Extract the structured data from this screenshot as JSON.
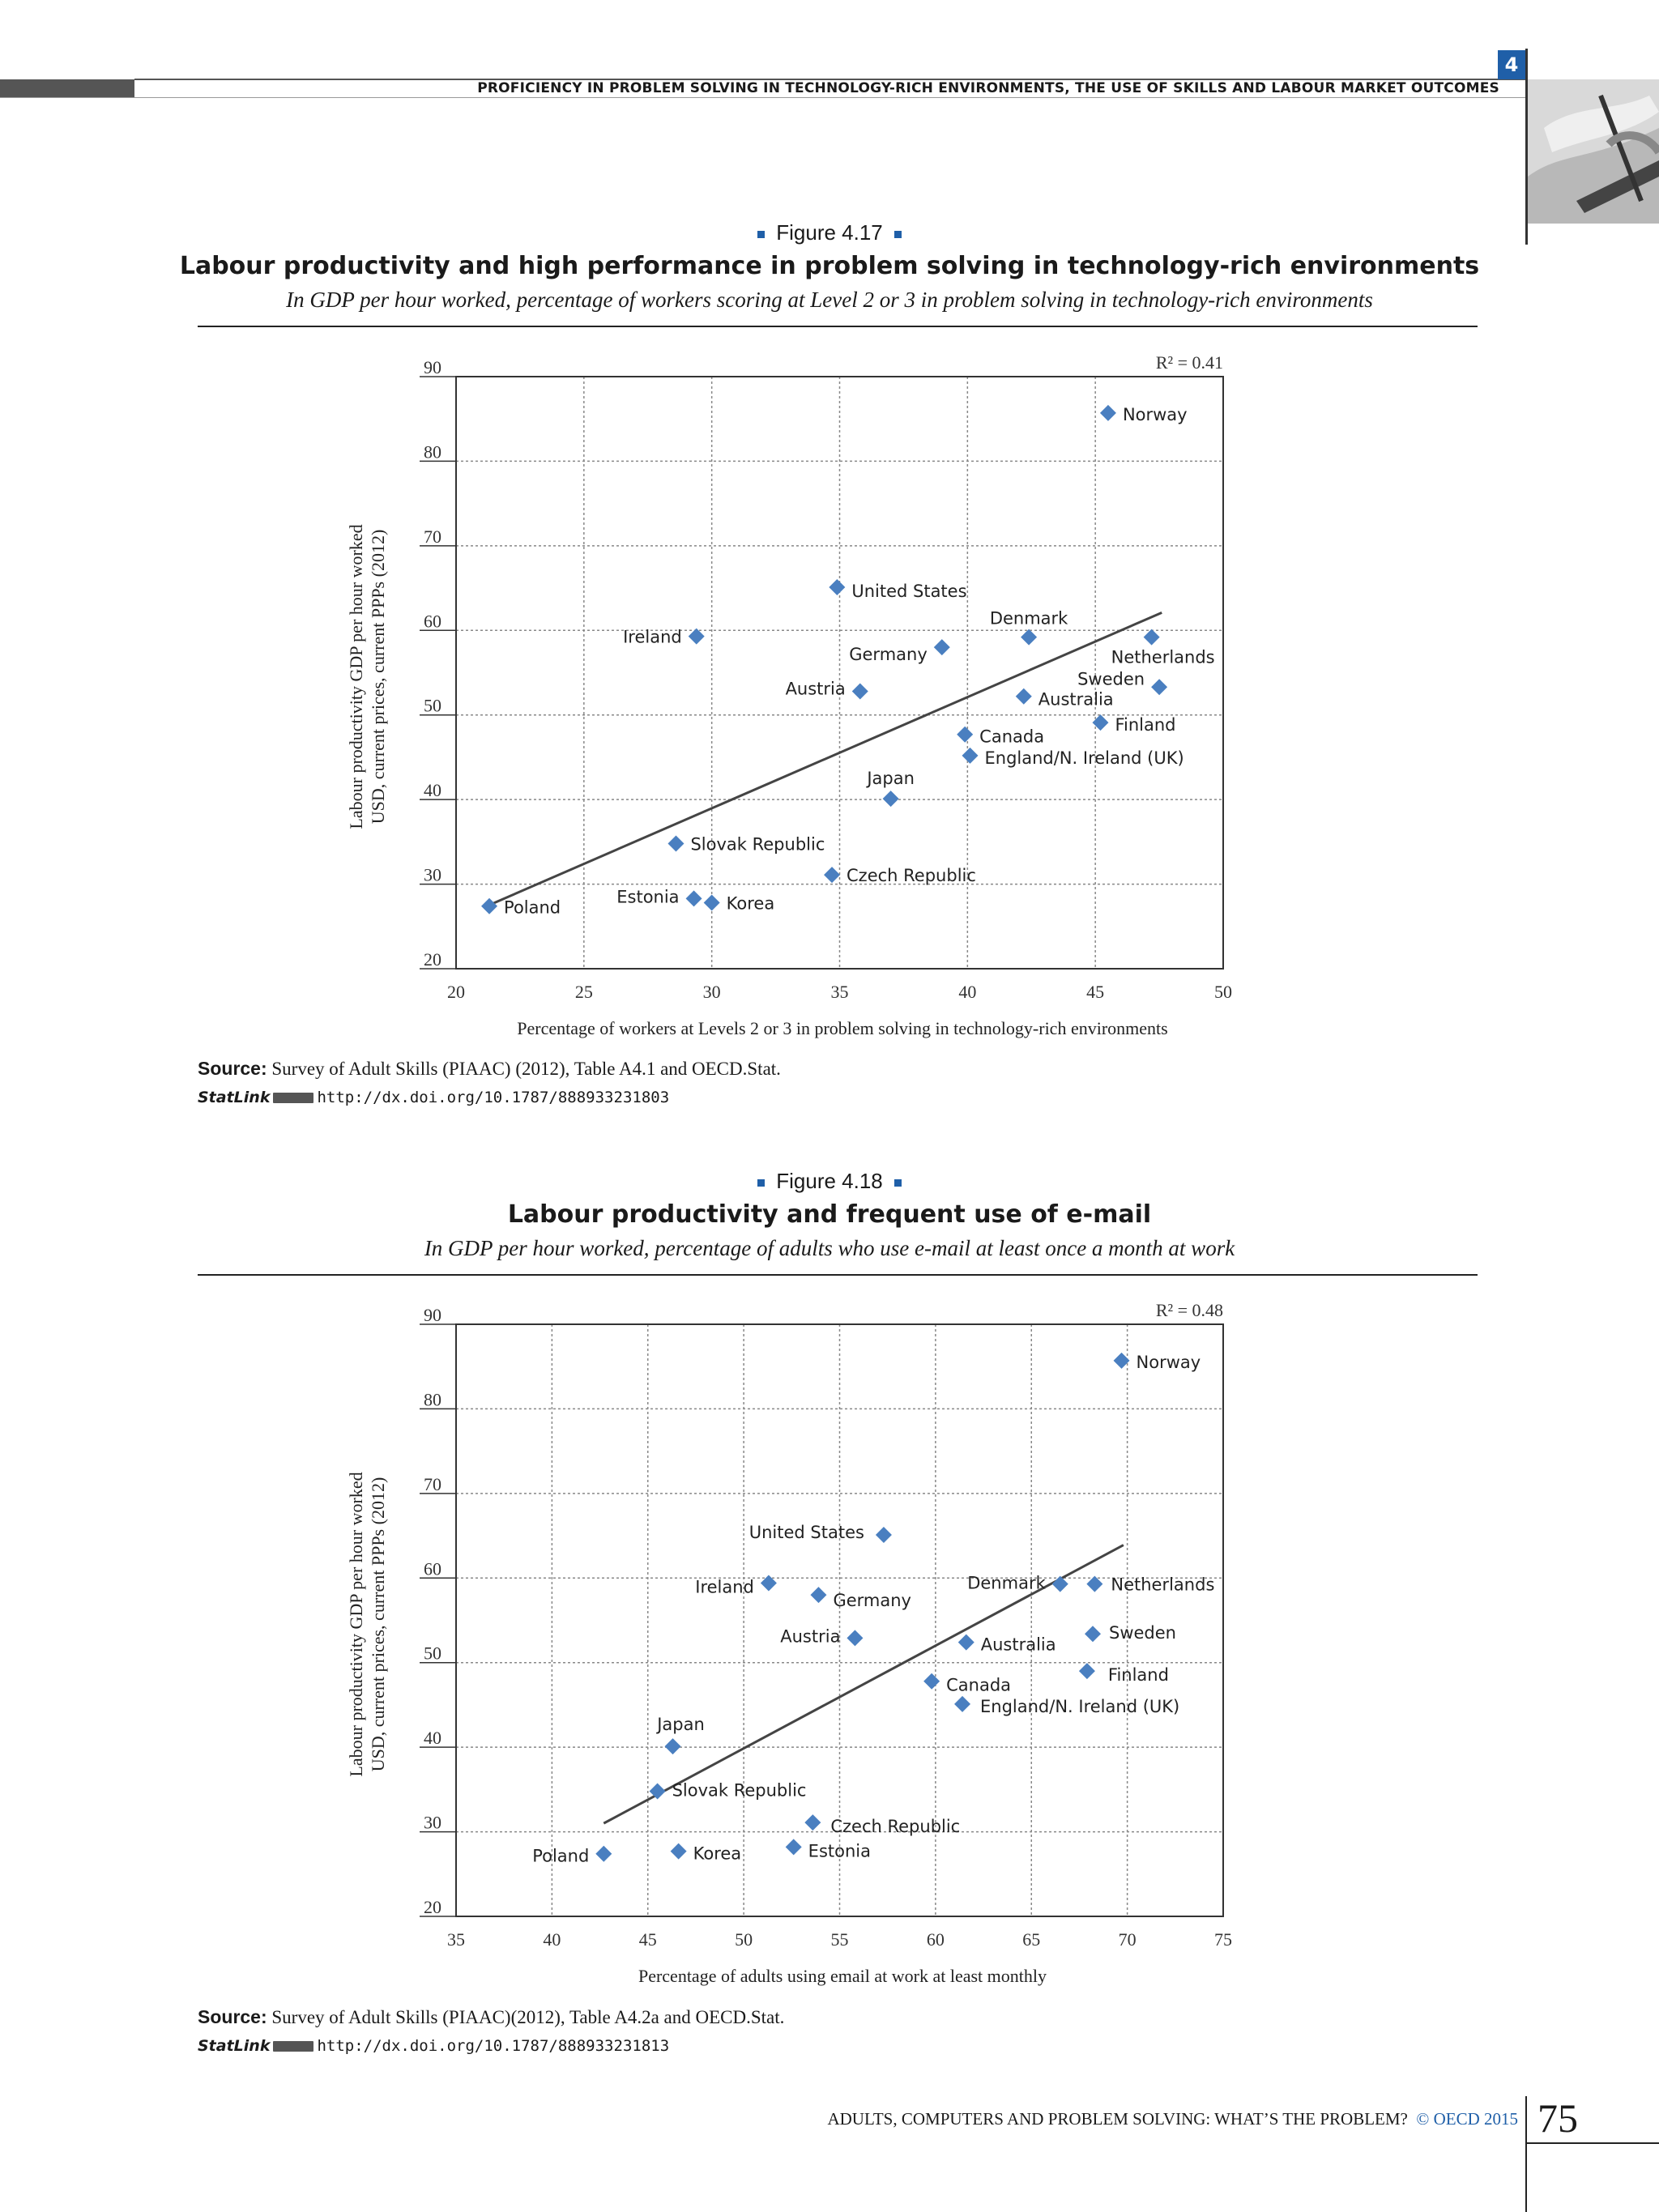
{
  "header": {
    "running_title": "PROFICIENCY IN PROBLEM SOLVING IN TECHNOLOGY-RICH ENVIRONMENTS, THE USE OF SKILLS AND LABOUR MARKET OUTCOMES",
    "chapter_number": "4"
  },
  "figure1": {
    "label": "Figure 4.17",
    "source_label": "Source:",
    "source_text": " Survey of Adult Skills (PIAAC) (2012), Table A4.1 and OECD.Stat.",
    "statlink_label": "StatLink",
    "statlink_url": "http://dx.doi.org/10.1787/888933231803"
  },
  "figure2": {
    "label": "Figure 4.18",
    "source_label": "Source:",
    "source_text": " Survey of Adult Skills (PIAAC)(2012), Table A4.2a and OECD.Stat.",
    "statlink_label": "StatLink",
    "statlink_url": "http://dx.doi.org/10.1787/888933231813"
  },
  "chart_data": [
    {
      "type": "scatter",
      "title": "Labour productivity and high performance in problem solving in technology-rich environments",
      "subtitle": "In GDP per hour worked, percentage of workers scoring at Level 2 or 3 in problem solving in technology-rich environments",
      "xlabel": "Percentage of workers at Levels 2 or 3 in problem solving in technology-rich environments",
      "ylabel_line1": "Labour productivity GDP per hour worked",
      "ylabel_line2": "USD, current prices, current PPPs (2012)",
      "xlim": [
        20,
        50
      ],
      "ylim": [
        20,
        90
      ],
      "xticks": [
        20,
        25,
        30,
        35,
        40,
        45,
        50
      ],
      "yticks": [
        20,
        30,
        40,
        50,
        60,
        70,
        80,
        90
      ],
      "grid": true,
      "annotation": "R² = 0.41",
      "trend": [
        [
          21.2,
          27.4
        ],
        [
          47.6,
          62.1
        ]
      ],
      "points": [
        {
          "label": "Norway",
          "x": 45.5,
          "y": 85.7
        },
        {
          "label": "United States",
          "x": 34.9,
          "y": 65.1
        },
        {
          "label": "Ireland",
          "x": 29.4,
          "y": 59.3
        },
        {
          "label": "Denmark",
          "x": 42.4,
          "y": 59.2
        },
        {
          "label": "Netherlands",
          "x": 47.2,
          "y": 59.2
        },
        {
          "label": "Germany",
          "x": 39.0,
          "y": 58.0
        },
        {
          "label": "Austria",
          "x": 35.8,
          "y": 52.8
        },
        {
          "label": "Sweden",
          "x": 47.5,
          "y": 53.3
        },
        {
          "label": "Australia",
          "x": 42.2,
          "y": 52.2
        },
        {
          "label": "Finland",
          "x": 45.2,
          "y": 49.1
        },
        {
          "label": "Canada",
          "x": 39.9,
          "y": 47.7
        },
        {
          "label": "England/N. Ireland (UK)",
          "x": 40.1,
          "y": 45.2
        },
        {
          "label": "Japan",
          "x": 37.0,
          "y": 40.1
        },
        {
          "label": "Slovak Republic",
          "x": 28.6,
          "y": 34.8
        },
        {
          "label": "Czech Republic",
          "x": 34.7,
          "y": 31.1
        },
        {
          "label": "Estonia",
          "x": 29.3,
          "y": 28.3
        },
        {
          "label": "Korea",
          "x": 30.0,
          "y": 27.8
        },
        {
          "label": "Poland",
          "x": 21.3,
          "y": 27.4
        }
      ]
    },
    {
      "type": "scatter",
      "title": "Labour productivity and frequent use of e-mail",
      "subtitle": "In GDP per hour worked, percentage of adults who use e-mail at least once a month at work",
      "xlabel": "Percentage of adults using email at work at least monthly",
      "ylabel_line1": "Labour productivity GDP per hour worked",
      "ylabel_line2": "USD, current prices, current PPPs (2012)",
      "xlim": [
        35,
        75
      ],
      "ylim": [
        20,
        90
      ],
      "xticks": [
        35,
        40,
        45,
        50,
        55,
        60,
        65,
        70,
        75
      ],
      "yticks": [
        20,
        30,
        40,
        50,
        60,
        70,
        80,
        90
      ],
      "grid": true,
      "annotation": "R² = 0.48",
      "trend": [
        [
          42.7,
          31.0
        ],
        [
          69.8,
          63.9
        ]
      ],
      "points": [
        {
          "label": "Norway",
          "x": 69.7,
          "y": 85.7
        },
        {
          "label": "United States",
          "x": 57.3,
          "y": 65.1
        },
        {
          "label": "Ireland",
          "x": 51.3,
          "y": 59.4
        },
        {
          "label": "Germany",
          "x": 53.9,
          "y": 58.0
        },
        {
          "label": "Denmark",
          "x": 66.5,
          "y": 59.3
        },
        {
          "label": "Netherlands",
          "x": 68.3,
          "y": 59.3
        },
        {
          "label": "Austria",
          "x": 55.8,
          "y": 52.9
        },
        {
          "label": "Australia",
          "x": 61.6,
          "y": 52.4
        },
        {
          "label": "Sweden",
          "x": 68.2,
          "y": 53.4
        },
        {
          "label": "Finland",
          "x": 67.9,
          "y": 49.0
        },
        {
          "label": "Canada",
          "x": 59.8,
          "y": 47.8
        },
        {
          "label": "England/N. Ireland (UK)",
          "x": 61.4,
          "y": 45.1
        },
        {
          "label": "Japan",
          "x": 46.3,
          "y": 40.1
        },
        {
          "label": "Slovak Republic",
          "x": 45.5,
          "y": 34.8
        },
        {
          "label": "Czech Republic",
          "x": 53.6,
          "y": 31.1
        },
        {
          "label": "Estonia",
          "x": 52.6,
          "y": 28.2
        },
        {
          "label": "Korea",
          "x": 46.6,
          "y": 27.7
        },
        {
          "label": "Poland",
          "x": 42.7,
          "y": 27.4
        }
      ]
    }
  ],
  "footer": {
    "book_title": "ADULTS, COMPUTERS AND PROBLEM SOLVING: WHAT’S THE PROBLEM?",
    "copyright": "© OECD 2015",
    "page_number": "75"
  },
  "colors": {
    "accent_blue": "#1f5fa8",
    "marker_blue": "#4a7fc0",
    "trend_line": "#444444"
  }
}
